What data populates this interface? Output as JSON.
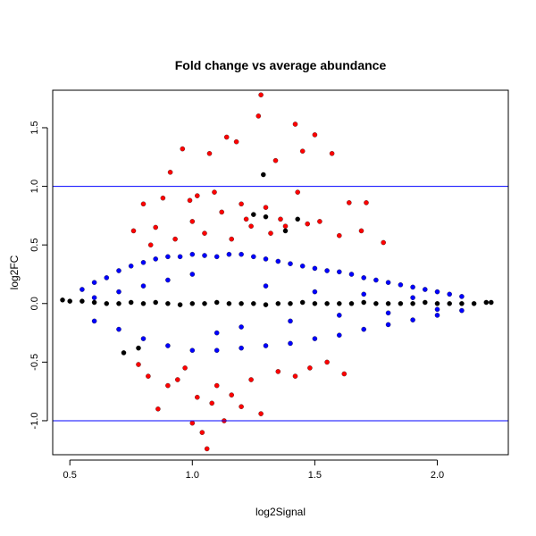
{
  "chart_data": {
    "type": "scatter",
    "title": "Fold change vs average abundance",
    "xlabel": "log2Signal",
    "ylabel": "log2FC",
    "xlim": [
      0.43,
      2.29
    ],
    "ylim": [
      -1.29,
      1.82
    ],
    "xticks": [
      0.5,
      1.0,
      1.5,
      2.0
    ],
    "xtick_labels": [
      "0.5",
      "1.0",
      "1.5",
      "2.0"
    ],
    "yticks": [
      -1.0,
      -0.5,
      0.0,
      0.5,
      1.0,
      1.5
    ],
    "ytick_labels": [
      "-1.0",
      "-0.5",
      "0.0",
      "0.5",
      "1.0",
      "1.5"
    ],
    "hlines": [
      1.0,
      -1.0
    ],
    "hline_color": "#0000ff",
    "grid": false,
    "legend": "none",
    "colors": {
      "not_significant": "#000000",
      "significant": "#0000ff",
      "above_threshold": "#ff0000"
    },
    "series": [
      {
        "color": "#0000ff",
        "x": [
          0.55,
          0.6,
          0.65,
          0.7,
          0.75,
          0.8,
          0.85,
          0.9,
          0.95,
          1.0,
          1.05,
          1.1,
          1.15,
          1.2,
          1.25,
          1.3,
          1.35,
          1.4,
          1.45,
          1.5,
          1.55,
          1.6,
          1.65,
          1.7,
          1.75,
          1.8,
          1.85,
          1.9,
          1.95,
          2.0,
          2.05,
          2.1,
          0.6,
          0.7,
          0.8,
          0.9,
          1.0,
          1.1,
          1.2,
          1.3,
          1.4,
          1.5,
          1.6,
          1.7,
          1.8,
          1.9,
          2.0,
          2.1,
          0.6,
          0.7,
          0.8,
          0.9,
          1.0,
          1.1,
          1.2,
          1.3,
          1.4,
          1.5,
          1.6,
          1.7,
          1.8,
          1.9,
          2.0
        ],
        "y": [
          0.12,
          0.18,
          0.22,
          0.28,
          0.32,
          0.35,
          0.38,
          0.4,
          0.4,
          0.42,
          0.41,
          0.4,
          0.42,
          0.42,
          0.4,
          0.38,
          0.36,
          0.34,
          0.32,
          0.3,
          0.28,
          0.27,
          0.25,
          0.22,
          0.2,
          0.18,
          0.16,
          0.14,
          0.12,
          0.1,
          0.08,
          0.06,
          -0.15,
          -0.22,
          -0.3,
          -0.36,
          -0.4,
          -0.4,
          -0.38,
          -0.36,
          -0.34,
          -0.3,
          -0.27,
          -0.22,
          -0.18,
          -0.14,
          -0.1,
          -0.06,
          0.05,
          0.1,
          0.15,
          0.2,
          0.25,
          -0.25,
          -0.2,
          0.15,
          -0.15,
          0.1,
          -0.1,
          0.08,
          -0.08,
          0.05,
          -0.05
        ]
      },
      {
        "color": "#ff0000",
        "x": [
          0.76,
          0.8,
          0.83,
          0.85,
          0.88,
          0.91,
          0.93,
          0.96,
          0.99,
          1.0,
          1.02,
          1.05,
          1.07,
          1.09,
          1.12,
          1.14,
          1.16,
          1.18,
          1.2,
          1.22,
          1.24,
          1.27,
          1.28,
          1.3,
          1.32,
          1.34,
          1.36,
          1.38,
          1.42,
          1.43,
          1.45,
          1.47,
          1.5,
          1.52,
          1.57,
          1.6,
          1.64,
          1.69,
          1.71,
          1.78,
          0.78,
          0.82,
          0.86,
          0.9,
          0.94,
          0.97,
          1.0,
          1.02,
          1.04,
          1.06,
          1.08,
          1.1,
          1.13,
          1.16,
          1.2,
          1.24,
          1.28,
          1.35,
          1.42,
          1.48,
          1.55,
          1.62
        ],
        "y": [
          0.62,
          0.85,
          0.5,
          0.65,
          0.9,
          1.12,
          0.55,
          1.32,
          0.88,
          0.7,
          0.92,
          0.6,
          1.28,
          0.95,
          0.78,
          1.42,
          0.55,
          1.38,
          0.85,
          0.72,
          0.66,
          1.6,
          1.78,
          0.82,
          0.6,
          1.22,
          0.72,
          0.66,
          1.53,
          0.95,
          1.3,
          0.68,
          1.44,
          0.7,
          1.28,
          0.58,
          0.86,
          0.62,
          0.86,
          0.52,
          -0.52,
          -0.62,
          -0.9,
          -0.7,
          -0.65,
          -0.55,
          -1.02,
          -0.8,
          -1.1,
          -1.24,
          -0.85,
          -0.7,
          -1.0,
          -0.78,
          -0.88,
          -0.65,
          -0.94,
          -0.58,
          -0.62,
          -0.55,
          -0.5,
          -0.6
        ]
      },
      {
        "color": "#000000",
        "x": [
          0.47,
          0.5,
          0.55,
          0.6,
          0.65,
          0.7,
          0.75,
          0.8,
          0.85,
          0.9,
          0.95,
          1.0,
          1.05,
          1.1,
          1.15,
          1.2,
          1.25,
          1.3,
          1.35,
          1.4,
          1.45,
          1.5,
          1.55,
          1.6,
          1.65,
          1.7,
          1.75,
          1.8,
          1.85,
          1.9,
          1.95,
          2.0,
          2.05,
          2.1,
          2.15,
          2.2,
          2.22,
          0.72,
          0.78,
          1.3,
          1.38,
          1.43,
          1.29,
          1.25
        ],
        "y": [
          0.03,
          0.02,
          0.02,
          0.01,
          0.0,
          0.0,
          0.01,
          0.0,
          0.01,
          0.0,
          -0.01,
          0.0,
          0.0,
          0.01,
          0.0,
          0.0,
          0.0,
          -0.01,
          0.0,
          0.0,
          0.01,
          0.0,
          0.0,
          0.0,
          0.0,
          0.01,
          0.0,
          0.0,
          0.0,
          0.0,
          0.01,
          0.0,
          0.0,
          0.0,
          0.0,
          0.01,
          0.01,
          -0.42,
          -0.38,
          0.74,
          0.62,
          0.72,
          1.1,
          0.76
        ]
      }
    ]
  }
}
